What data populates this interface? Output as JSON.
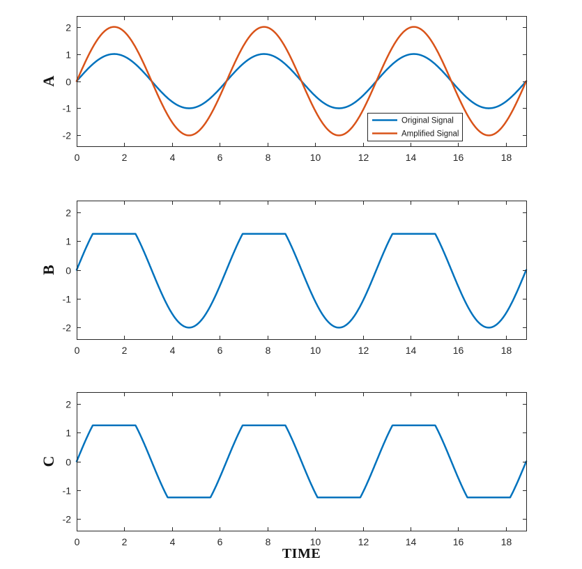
{
  "figure": {
    "background_color": "#ffffff",
    "axis_color": "#262626",
    "text_color": "#141414"
  },
  "chart_data": [
    {
      "type": "line",
      "title": "",
      "ylabel": "A",
      "xlabel": "",
      "x_range": [
        0,
        18.8496
      ],
      "ylim": [
        -2.4,
        2.4
      ],
      "x_ticks": [
        0,
        2,
        4,
        6,
        8,
        10,
        12,
        14,
        16,
        18
      ],
      "y_ticks": [
        -2,
        -1,
        0,
        1,
        2
      ],
      "grid": false,
      "series": [
        {
          "name": "Original Signal",
          "formula": "sin(t)",
          "amplitude": 1,
          "period": 6.2832,
          "phase": 0,
          "clip_min": null,
          "clip_max": null,
          "color": "#0072BD"
        },
        {
          "name": "Amplified Signal",
          "formula": "2*sin(t)",
          "amplitude": 2,
          "period": 6.2832,
          "phase": 0,
          "clip_min": null,
          "clip_max": null,
          "color": "#D95319"
        }
      ],
      "legend": {
        "location": "inside-lower-right",
        "entries": [
          {
            "label": "Original Signal",
            "color": "#0072BD"
          },
          {
            "label": "Amplified Signal",
            "color": "#D95319"
          }
        ]
      }
    },
    {
      "type": "line",
      "title": "",
      "ylabel": "B",
      "xlabel": "",
      "x_range": [
        0,
        18.8496
      ],
      "ylim": [
        -2.4,
        2.4
      ],
      "x_ticks": [
        0,
        2,
        4,
        6,
        8,
        10,
        12,
        14,
        16,
        18
      ],
      "y_ticks": [
        -2,
        -1,
        0,
        1,
        2
      ],
      "grid": false,
      "series": [
        {
          "formula": "2*sin(t) clipped above at +1.25",
          "amplitude": 2,
          "period": 6.2832,
          "phase": 0,
          "clip_min": null,
          "clip_max": 1.25,
          "color": "#0072BD"
        }
      ],
      "legend": null
    },
    {
      "type": "line",
      "title": "",
      "ylabel": "C",
      "xlabel": "TIME",
      "x_range": [
        0,
        18.8496
      ],
      "ylim": [
        -2.4,
        2.4
      ],
      "x_ticks": [
        0,
        2,
        4,
        6,
        8,
        10,
        12,
        14,
        16,
        18
      ],
      "y_ticks": [
        -2,
        -1,
        0,
        1,
        2
      ],
      "grid": false,
      "series": [
        {
          "formula": "2*sin(t) clipped at -1.25 and +1.25",
          "amplitude": 2,
          "period": 6.2832,
          "phase": 0,
          "clip_min": -1.25,
          "clip_max": 1.25,
          "color": "#0072BD"
        }
      ],
      "legend": null
    }
  ]
}
